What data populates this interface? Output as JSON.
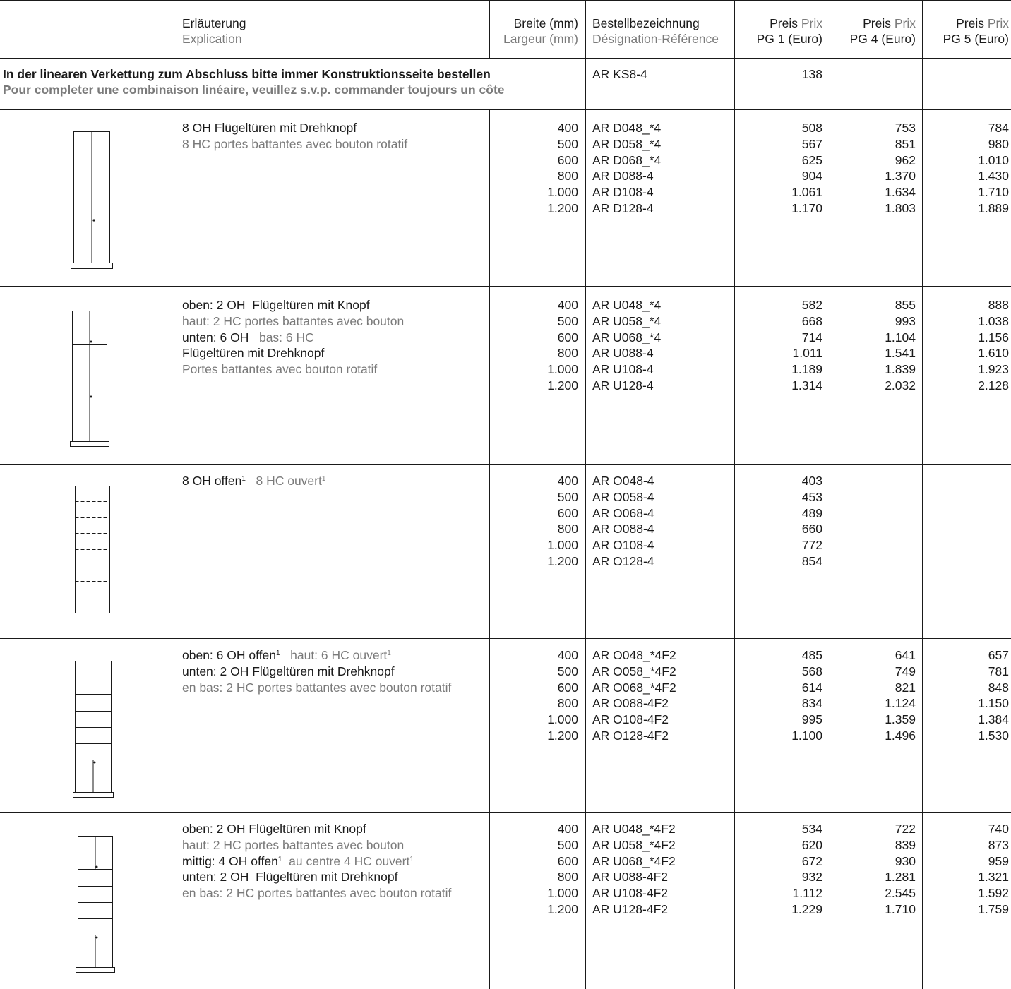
{
  "header": {
    "explanation_de": "Erläuterung",
    "explanation_fr": "Explication",
    "width_de": "Breite (mm)",
    "width_fr": "Largeur (mm)",
    "order_de": "Bestellbezeichnung",
    "order_fr": "Désignation-Référence",
    "price1_a": "Preis",
    "price1_b": "Prix",
    "price1_c": "PG 1 (Euro)",
    "price4_a": "Preis",
    "price4_b": "Prix",
    "price4_c": "PG 4 (Euro)",
    "price5_a": "Preis",
    "price5_b": "Prix",
    "price5_c": "PG 5 (Euro)"
  },
  "intro": {
    "text_de": "In der linearen Verkettung zum Abschluss bitte immer Konstruktionsseite bestellen",
    "text_fr": "Pour completer une combinaison linéaire, veuillez s.v.p. commander toujours un côte",
    "code": "AR KS8-4",
    "price": "138"
  },
  "rows": [
    {
      "desc_lines": [
        {
          "parts": [
            {
              "t": "8 OH Flügeltüren mit Drehknopf",
              "c": "de"
            }
          ]
        },
        {
          "parts": [
            {
              "t": "8 HC portes battantes avec bouton rotatif",
              "c": "fr"
            }
          ]
        }
      ],
      "widths": [
        "400",
        "500",
        "600",
        "800",
        "1.000",
        "1.200"
      ],
      "codes": [
        "AR D048_*4",
        "AR D058_*4",
        "AR D068_*4",
        "AR D088-4",
        "AR D108-4",
        "AR D128-4"
      ],
      "pg1": [
        "508",
        "567",
        "625",
        "904",
        "1.061",
        "1.170"
      ],
      "pg4": [
        "753",
        "851",
        "962",
        "1.370",
        "1.634",
        "1.803"
      ],
      "pg5": [
        "784",
        "980",
        "1.010",
        "1.430",
        "1.710",
        "1.889"
      ]
    },
    {
      "desc_lines": [
        {
          "parts": [
            {
              "t": "oben: 2 OH  Flügeltüren mit Knopf",
              "c": "de"
            }
          ]
        },
        {
          "parts": [
            {
              "t": "haut: 2 HC portes battantes avec bouton",
              "c": "fr"
            }
          ]
        },
        {
          "parts": [
            {
              "t": "unten: 6 OH",
              "c": "de"
            },
            {
              "t": "   bas: 6 HC",
              "c": "fr"
            }
          ]
        },
        {
          "parts": [
            {
              "t": "Flügeltüren mit Drehknopf",
              "c": "de"
            }
          ]
        },
        {
          "parts": [
            {
              "t": "Portes battantes avec bouton rotatif",
              "c": "fr"
            }
          ]
        }
      ],
      "widths": [
        "400",
        "500",
        "600",
        "800",
        "1.000",
        "1.200"
      ],
      "codes": [
        "AR U048_*4",
        "AR U058_*4",
        "AR U068_*4",
        "AR U088-4",
        "AR U108-4",
        "AR U128-4"
      ],
      "pg1": [
        "582",
        "668",
        "714",
        "1.011",
        "1.189",
        "1.314"
      ],
      "pg4": [
        "855",
        "993",
        "1.104",
        "1.541",
        "1.839",
        "2.032"
      ],
      "pg5": [
        "888",
        "1.038",
        "1.156",
        "1.610",
        "1.923",
        "2.128"
      ]
    },
    {
      "desc_lines": [
        {
          "parts": [
            {
              "t": "8 OH offen",
              "c": "de"
            },
            {
              "t": "1",
              "c": "sup-de"
            },
            {
              "t": "   8 HC ouvert",
              "c": "fr"
            },
            {
              "t": "1",
              "c": "sup-fr"
            }
          ]
        }
      ],
      "widths": [
        "400",
        "500",
        "600",
        "800",
        "1.000",
        "1.200"
      ],
      "codes": [
        "AR O048-4",
        "AR O058-4",
        "AR O068-4",
        "AR O088-4",
        "AR O108-4",
        "AR O128-4"
      ],
      "pg1": [
        "403",
        "453",
        "489",
        "660",
        "772",
        "854"
      ],
      "pg4": [],
      "pg5": []
    },
    {
      "desc_lines": [
        {
          "parts": [
            {
              "t": "oben: 6 OH offen",
              "c": "de"
            },
            {
              "t": "1",
              "c": "sup-de"
            },
            {
              "t": "   haut: 6 HC ouvert",
              "c": "fr"
            },
            {
              "t": "1",
              "c": "sup-fr"
            }
          ]
        },
        {
          "parts": [
            {
              "t": "unten: 2 OH Flügeltüren mit Drehknopf",
              "c": "de"
            }
          ]
        },
        {
          "parts": [
            {
              "t": "en bas: 2 HC portes battantes avec bouton rotatif",
              "c": "fr"
            }
          ]
        }
      ],
      "widths": [
        "400",
        "500",
        "600",
        "800",
        "1.000",
        "1.200"
      ],
      "codes": [
        "AR O048_*4F2",
        "AR O058_*4F2",
        "AR O068_*4F2",
        "AR O088-4F2",
        "AR O108-4F2",
        "AR O128-4F2"
      ],
      "pg1": [
        "485",
        "568",
        "614",
        "834",
        "995",
        "1.100"
      ],
      "pg4": [
        "641",
        "749",
        "821",
        "1.124",
        "1.359",
        "1.496"
      ],
      "pg5": [
        "657",
        "781",
        "848",
        "1.150",
        "1.384",
        "1.530"
      ]
    },
    {
      "desc_lines": [
        {
          "parts": [
            {
              "t": "oben: 2 OH Flügeltüren mit Knopf",
              "c": "de"
            }
          ]
        },
        {
          "parts": [
            {
              "t": "haut: 2 HC portes battantes avec bouton",
              "c": "fr"
            }
          ]
        },
        {
          "parts": [
            {
              "t": "mittig: 4 OH offen",
              "c": "de"
            },
            {
              "t": "1",
              "c": "sup-de"
            },
            {
              "t": "  au centre 4 HC ouvert",
              "c": "fr"
            },
            {
              "t": "1",
              "c": "sup-fr"
            }
          ]
        },
        {
          "parts": [
            {
              "t": "unten: 2 OH  Flügeltüren mit Drehknopf",
              "c": "de"
            }
          ]
        },
        {
          "parts": [
            {
              "t": "en bas: 2 HC portes battantes avec bouton rotatif",
              "c": "fr"
            }
          ]
        }
      ],
      "widths": [
        "400",
        "500",
        "600",
        "800",
        "1.000",
        "1.200"
      ],
      "codes": [
        "AR U048_*4F2",
        "AR U058_*4F2",
        "AR U068_*4F2",
        "AR U088-4F2",
        "AR U108-4F2",
        "AR U128-4F2"
      ],
      "pg1": [
        "534",
        "620",
        "672",
        "932",
        "1.112",
        "1.229"
      ],
      "pg4": [
        "722",
        "839",
        "930",
        "1.281",
        "2.545",
        "1.710"
      ],
      "pg5": [
        "740",
        "873",
        "959",
        "1.321",
        "1.592",
        "1.759"
      ]
    }
  ]
}
